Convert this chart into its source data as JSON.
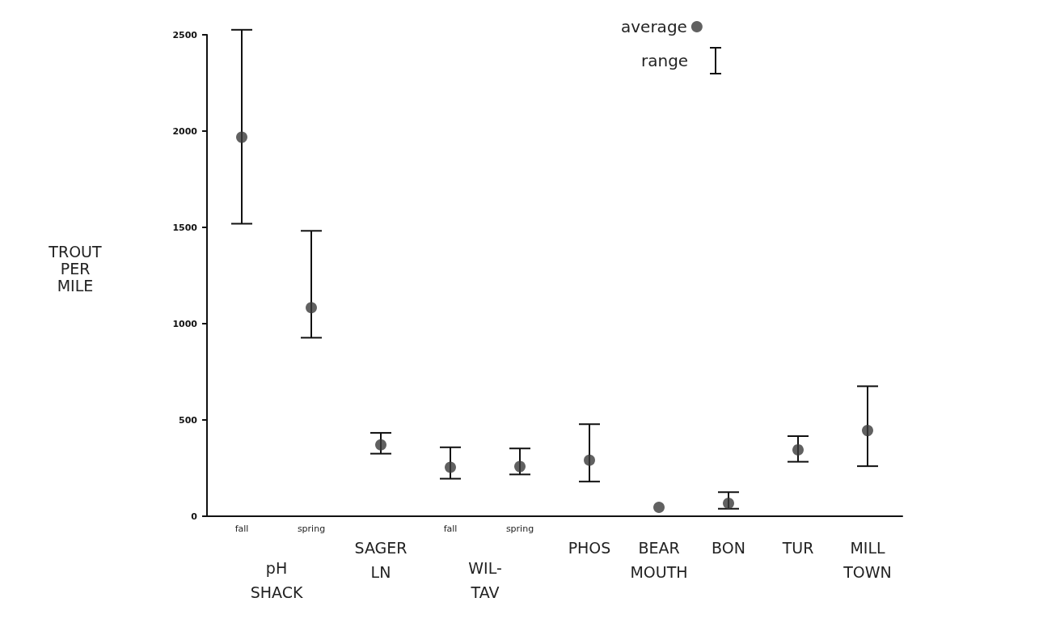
{
  "chart_data": {
    "type": "scatter",
    "ylabel": "TROUT PER MILE",
    "categories": [
      "fall",
      "spring",
      "SAGER LN",
      "fall",
      "spring",
      "PHOS",
      "BEAR MOUTH",
      "BON",
      "TUR",
      "MILL TOWN"
    ],
    "series": [
      {
        "name": "average",
        "color": "#3a3a3a",
        "values": [
          1968,
          1083,
          371,
          254,
          258,
          291,
          46,
          67,
          345,
          445
        ],
        "errors": [
          [
            1519,
            2526
          ],
          [
            927,
            1482
          ],
          [
            325,
            433
          ],
          [
            195,
            358
          ],
          [
            217,
            352
          ],
          [
            180,
            478
          ],
          null,
          [
            39,
            125
          ],
          [
            283,
            416
          ],
          [
            260,
            675
          ]
        ]
      }
    ],
    "ylim": [
      0,
      2500
    ],
    "yticks": [
      0,
      500,
      1000,
      1500,
      2000,
      2500
    ],
    "annotations": [
      "pH SHACK",
      "WIL-TAV",
      "range"
    ],
    "legend": "top right",
    "marker": "circle",
    "grid": false
  }
}
